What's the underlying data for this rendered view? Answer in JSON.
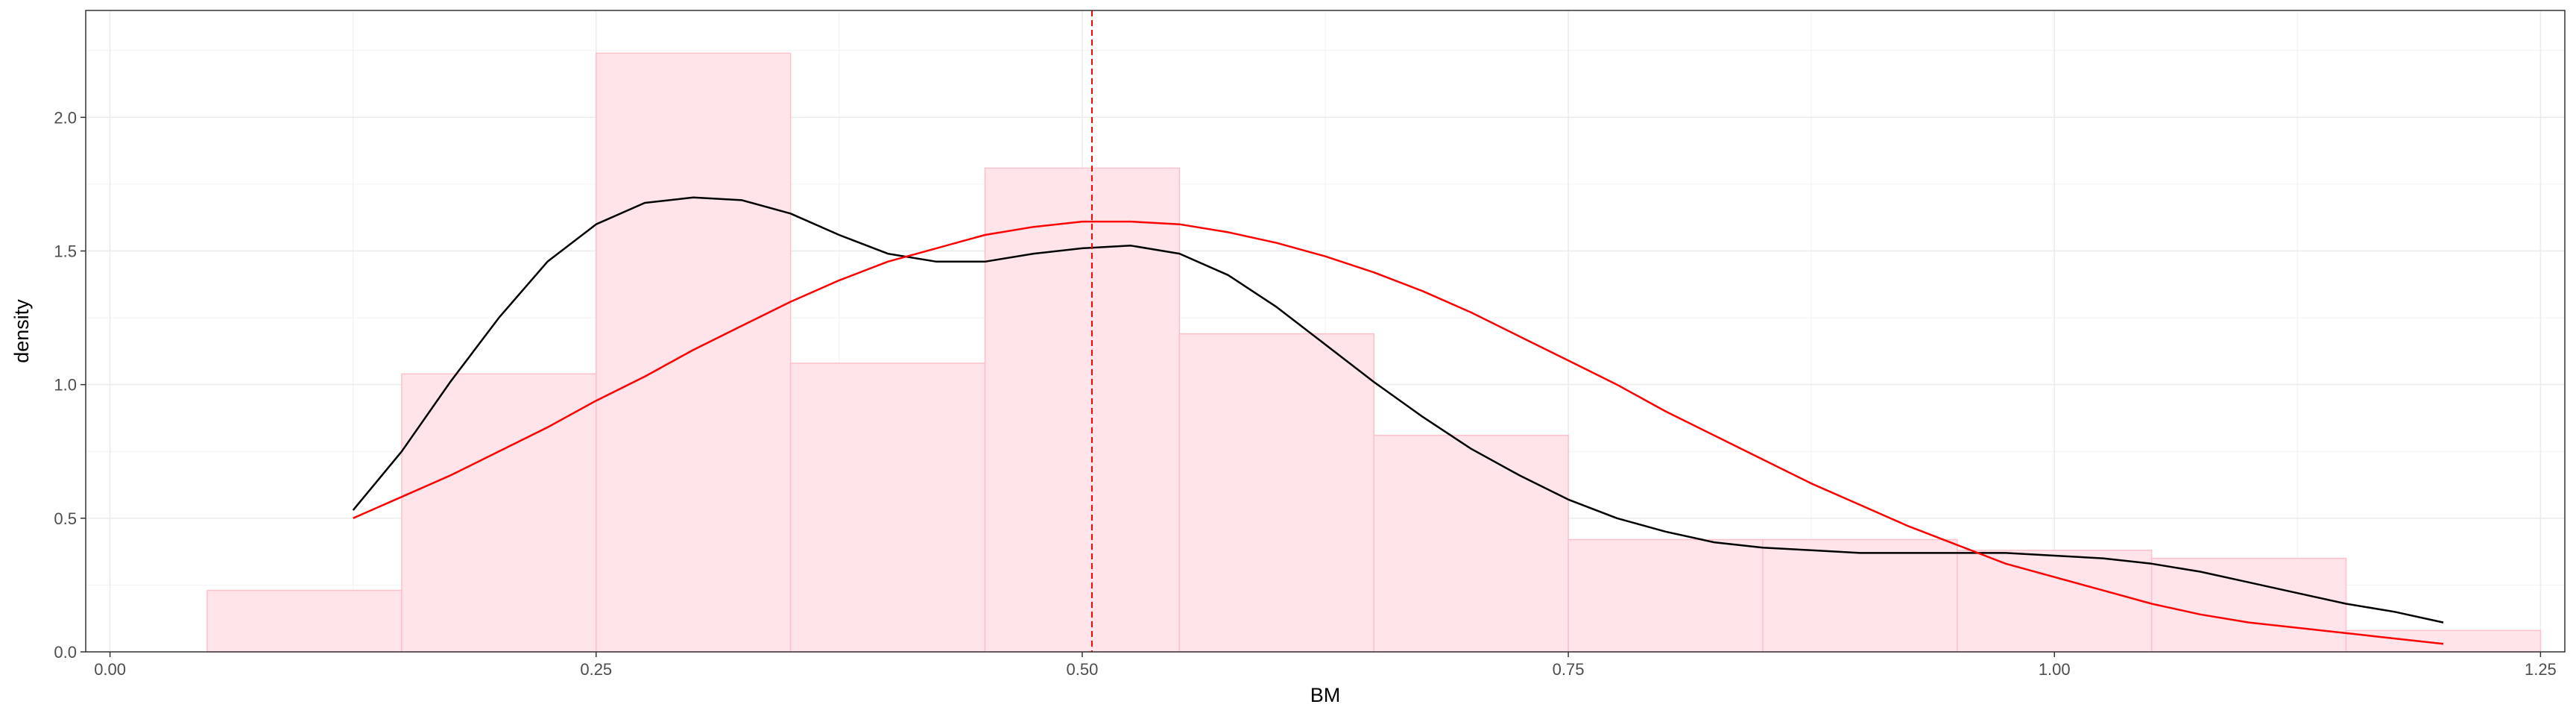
{
  "chart_data": {
    "type": "bar",
    "subtype": "histogram-with-density-curves",
    "title": "",
    "xlabel": "BM",
    "ylabel": "density",
    "xlim": [
      -0.0125,
      1.2625
    ],
    "ylim": [
      0,
      2.4
    ],
    "x_ticks": [
      0.0,
      0.25,
      0.5,
      0.75,
      1.0,
      1.25
    ],
    "x_tick_labels": [
      "0.00",
      "0.25",
      "0.50",
      "0.75",
      "1.00",
      "1.25"
    ],
    "y_ticks": [
      0.0,
      0.5,
      1.0,
      1.5,
      2.0
    ],
    "y_tick_labels": [
      "0.0",
      "0.5",
      "1.0",
      "1.5",
      "2.0"
    ],
    "grid": true,
    "legend": "none",
    "histogram": {
      "bins": [
        {
          "x0": 0.05,
          "x1": 0.15,
          "density": 0.23
        },
        {
          "x0": 0.15,
          "x1": 0.25,
          "density": 1.04
        },
        {
          "x0": 0.25,
          "x1": 0.35,
          "density": 2.24
        },
        {
          "x0": 0.35,
          "x1": 0.45,
          "density": 1.08
        },
        {
          "x0": 0.45,
          "x1": 0.55,
          "density": 1.81
        },
        {
          "x0": 0.55,
          "x1": 0.65,
          "density": 1.19
        },
        {
          "x0": 0.65,
          "x1": 0.75,
          "density": 0.81
        },
        {
          "x0": 0.75,
          "x1": 0.85,
          "density": 0.42
        },
        {
          "x0": 0.85,
          "x1": 0.95,
          "density": 0.42
        },
        {
          "x0": 0.95,
          "x1": 1.05,
          "density": 0.38
        },
        {
          "x0": 1.05,
          "x1": 1.15,
          "density": 0.35
        },
        {
          "x0": 1.15,
          "x1": 1.25,
          "density": 0.08
        }
      ],
      "fill": "#ffe4e9",
      "stroke": "#ffc0cb"
    },
    "series": [
      {
        "kind": "kernel-density",
        "color": "#000000",
        "x": [
          0.125,
          0.15,
          0.175,
          0.2,
          0.225,
          0.25,
          0.275,
          0.3,
          0.325,
          0.35,
          0.375,
          0.4,
          0.425,
          0.45,
          0.475,
          0.5,
          0.525,
          0.55,
          0.575,
          0.6,
          0.625,
          0.65,
          0.675,
          0.7,
          0.725,
          0.75,
          0.775,
          0.8,
          0.825,
          0.85,
          0.875,
          0.9,
          0.925,
          0.95,
          0.975,
          1.0,
          1.025,
          1.05,
          1.075,
          1.1,
          1.125,
          1.15,
          1.175,
          1.2
        ],
        "y": [
          0.53,
          0.75,
          1.01,
          1.25,
          1.46,
          1.6,
          1.68,
          1.7,
          1.69,
          1.64,
          1.56,
          1.49,
          1.46,
          1.46,
          1.49,
          1.51,
          1.52,
          1.49,
          1.41,
          1.29,
          1.15,
          1.01,
          0.88,
          0.76,
          0.66,
          0.57,
          0.5,
          0.45,
          0.41,
          0.39,
          0.38,
          0.37,
          0.37,
          0.37,
          0.37,
          0.36,
          0.35,
          0.33,
          0.3,
          0.26,
          0.22,
          0.18,
          0.15,
          0.11
        ]
      },
      {
        "kind": "normal-fit",
        "color": "#ff0000",
        "x": [
          0.125,
          0.15,
          0.175,
          0.2,
          0.225,
          0.25,
          0.275,
          0.3,
          0.325,
          0.35,
          0.375,
          0.4,
          0.425,
          0.45,
          0.475,
          0.5,
          0.525,
          0.55,
          0.575,
          0.6,
          0.625,
          0.65,
          0.675,
          0.7,
          0.725,
          0.75,
          0.775,
          0.8,
          0.825,
          0.85,
          0.875,
          0.9,
          0.925,
          0.95,
          0.975,
          1.0,
          1.025,
          1.05,
          1.075,
          1.1,
          1.125,
          1.15,
          1.175,
          1.2
        ],
        "y": [
          0.5,
          0.58,
          0.66,
          0.75,
          0.84,
          0.94,
          1.03,
          1.13,
          1.22,
          1.31,
          1.39,
          1.46,
          1.51,
          1.56,
          1.59,
          1.61,
          1.61,
          1.6,
          1.57,
          1.53,
          1.48,
          1.42,
          1.35,
          1.27,
          1.18,
          1.09,
          1.0,
          0.9,
          0.81,
          0.72,
          0.63,
          0.55,
          0.47,
          0.4,
          0.33,
          0.28,
          0.23,
          0.18,
          0.14,
          0.11,
          0.09,
          0.07,
          0.05,
          0.03
        ]
      }
    ],
    "vline": {
      "x": 0.505,
      "color": "#ff0000",
      "style": "dashed"
    }
  }
}
